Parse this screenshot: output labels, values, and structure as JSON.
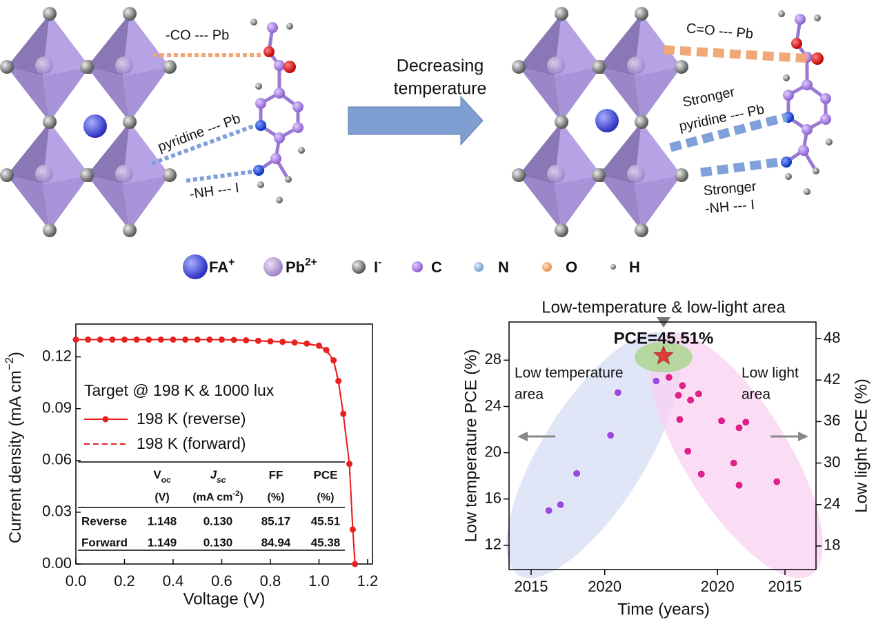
{
  "diagram": {
    "left_labels": [
      "-CO  --- Pb",
      "pyridine --- Pb",
      "-NH  --- I"
    ],
    "arrow_label": [
      "Decreasing",
      "temperature"
    ],
    "right_labels": [
      "C=O  --- Pb",
      [
        "Stronger",
        "pyridine --- Pb"
      ],
      [
        "Stronger",
        "-NH  --- I"
      ]
    ]
  },
  "legend": [
    {
      "text": "FA",
      "sup": "+"
    },
    {
      "text": "Pb",
      "sup": "2+"
    },
    {
      "text": "I",
      "sup": "-"
    },
    "C",
    "N",
    "O",
    "H"
  ],
  "chart_data": [
    {
      "type": "line",
      "xlabel": "Voltage (V)",
      "ylabel": {
        "text": "Current density (mA cm",
        "sup": "−2",
        "end": ")"
      },
      "xlim": [
        0,
        1.22
      ],
      "xticks": [
        {
          "value": 0,
          "label": "0.0"
        },
        0.2,
        0.4,
        0.6,
        0.8,
        {
          "value": 1,
          "label": "1.0"
        },
        1.2
      ],
      "ylim": [
        0,
        0.139
      ],
      "yticks": [
        {
          "value": 0,
          "label": "0.00"
        },
        0.03,
        0.06,
        0.09,
        0.12
      ],
      "legend_title": "Target @ 198 K & 1000 lux",
      "series": [
        {
          "name": "198 K (reverse)",
          "color": "#e8201f",
          "markers": true,
          "dash": false,
          "x": [
            0,
            0.05,
            0.1,
            0.15,
            0.2,
            0.25,
            0.3,
            0.35,
            0.4,
            0.45,
            0.5,
            0.55,
            0.6,
            0.65,
            0.7,
            0.75,
            0.8,
            0.85,
            0.9,
            0.95,
            1.0,
            1.03,
            1.06,
            1.08,
            1.1,
            1.125,
            1.139,
            1.148
          ],
          "values": [
            0.13,
            0.13,
            0.13,
            0.13,
            0.13,
            0.13,
            0.13,
            0.13,
            0.13,
            0.13,
            0.13,
            0.13,
            0.13,
            0.1298,
            0.1296,
            0.1293,
            0.129,
            0.1287,
            0.1283,
            0.1277,
            0.1265,
            0.124,
            0.118,
            0.106,
            0.087,
            0.058,
            0.02,
            0
          ]
        },
        {
          "name": "198 K (forward)",
          "color": "#e8201f",
          "markers": false,
          "dash": true,
          "x": [
            0,
            0.1,
            0.2,
            0.3,
            0.4,
            0.5,
            0.6,
            0.7,
            0.8,
            0.9,
            0.95,
            1.0,
            1.03,
            1.06,
            1.08,
            1.1,
            1.125,
            1.139,
            1.149
          ],
          "values": [
            0.13,
            0.13,
            0.13,
            0.13,
            0.13,
            0.13,
            0.13,
            0.1296,
            0.129,
            0.1282,
            0.1275,
            0.1262,
            0.1236,
            0.1175,
            0.1055,
            0.0865,
            0.058,
            0.0205,
            0
          ]
        }
      ],
      "table": {
        "columns": [
          {
            "text": "V",
            "sub": "oc"
          },
          {
            "text": "J",
            "sub": "sc"
          },
          "FF",
          "PCE"
        ],
        "units": [
          "(V)",
          {
            "text": "(mA cm",
            "sup": "-2",
            "end": ")"
          },
          "(%)",
          "(%)"
        ],
        "rows": [
          [
            "Reverse",
            "1.148",
            "0.130",
            "85.17",
            "45.51"
          ],
          [
            "Forward",
            "1.149",
            "0.130",
            "84.94",
            "45.38"
          ]
        ]
      }
    },
    {
      "type": "scatter",
      "title": "Low-temperature & low-light area",
      "xlabel": "Time (years)",
      "ylabel": "Low temperature PCE (%)",
      "y2label": "Low light PCE (%)",
      "xlim": [
        2013.5,
        2024
      ],
      "xticks": [
        2015,
        2020
      ],
      "x2lim": [
        2024,
        2012.7
      ],
      "x2ticks": [
        2020,
        2015
      ],
      "ylim": [
        9.9,
        31.3
      ],
      "yticks": [
        12,
        16,
        20,
        24,
        28
      ],
      "y2lim": [
        14.6,
        50.4
      ],
      "y2ticks": [
        18,
        24,
        30,
        36,
        42,
        48
      ],
      "series": [
        {
          "color": "#9b4be0",
          "x": [
            2016.2,
            2017.0,
            2018.1,
            2020.4,
            2020.9,
            2023.5
          ],
          "values": [
            15.0,
            15.5,
            18.2,
            21.5,
            25.2,
            26.2
          ]
        },
        {
          "color": "#e0208c",
          "axis": "y2",
          "xaxis": "x2",
          "x": [
            2023.6,
            2022.6,
            2022.9,
            2022.0,
            2021.4,
            2022.8,
            2022.2,
            2021.2,
            2019.7,
            2018.8,
            2018.4,
            2017.9,
            2018.4,
            2015.6
          ],
          "values": [
            42.4,
            41.2,
            39.8,
            39.1,
            40.0,
            36.3,
            31.7,
            28.4,
            36.1,
            30.0,
            35.1,
            35.9,
            26.8,
            27.3
          ]
        }
      ],
      "annotations": {
        "left": [
          "Low temperature",
          "area"
        ],
        "right": [
          "Low light",
          "area"
        ]
      },
      "highlight": {
        "x": 2024,
        "value": 45.51,
        "label": "PCE=45.51%",
        "color": "#e03a3a"
      }
    }
  ]
}
